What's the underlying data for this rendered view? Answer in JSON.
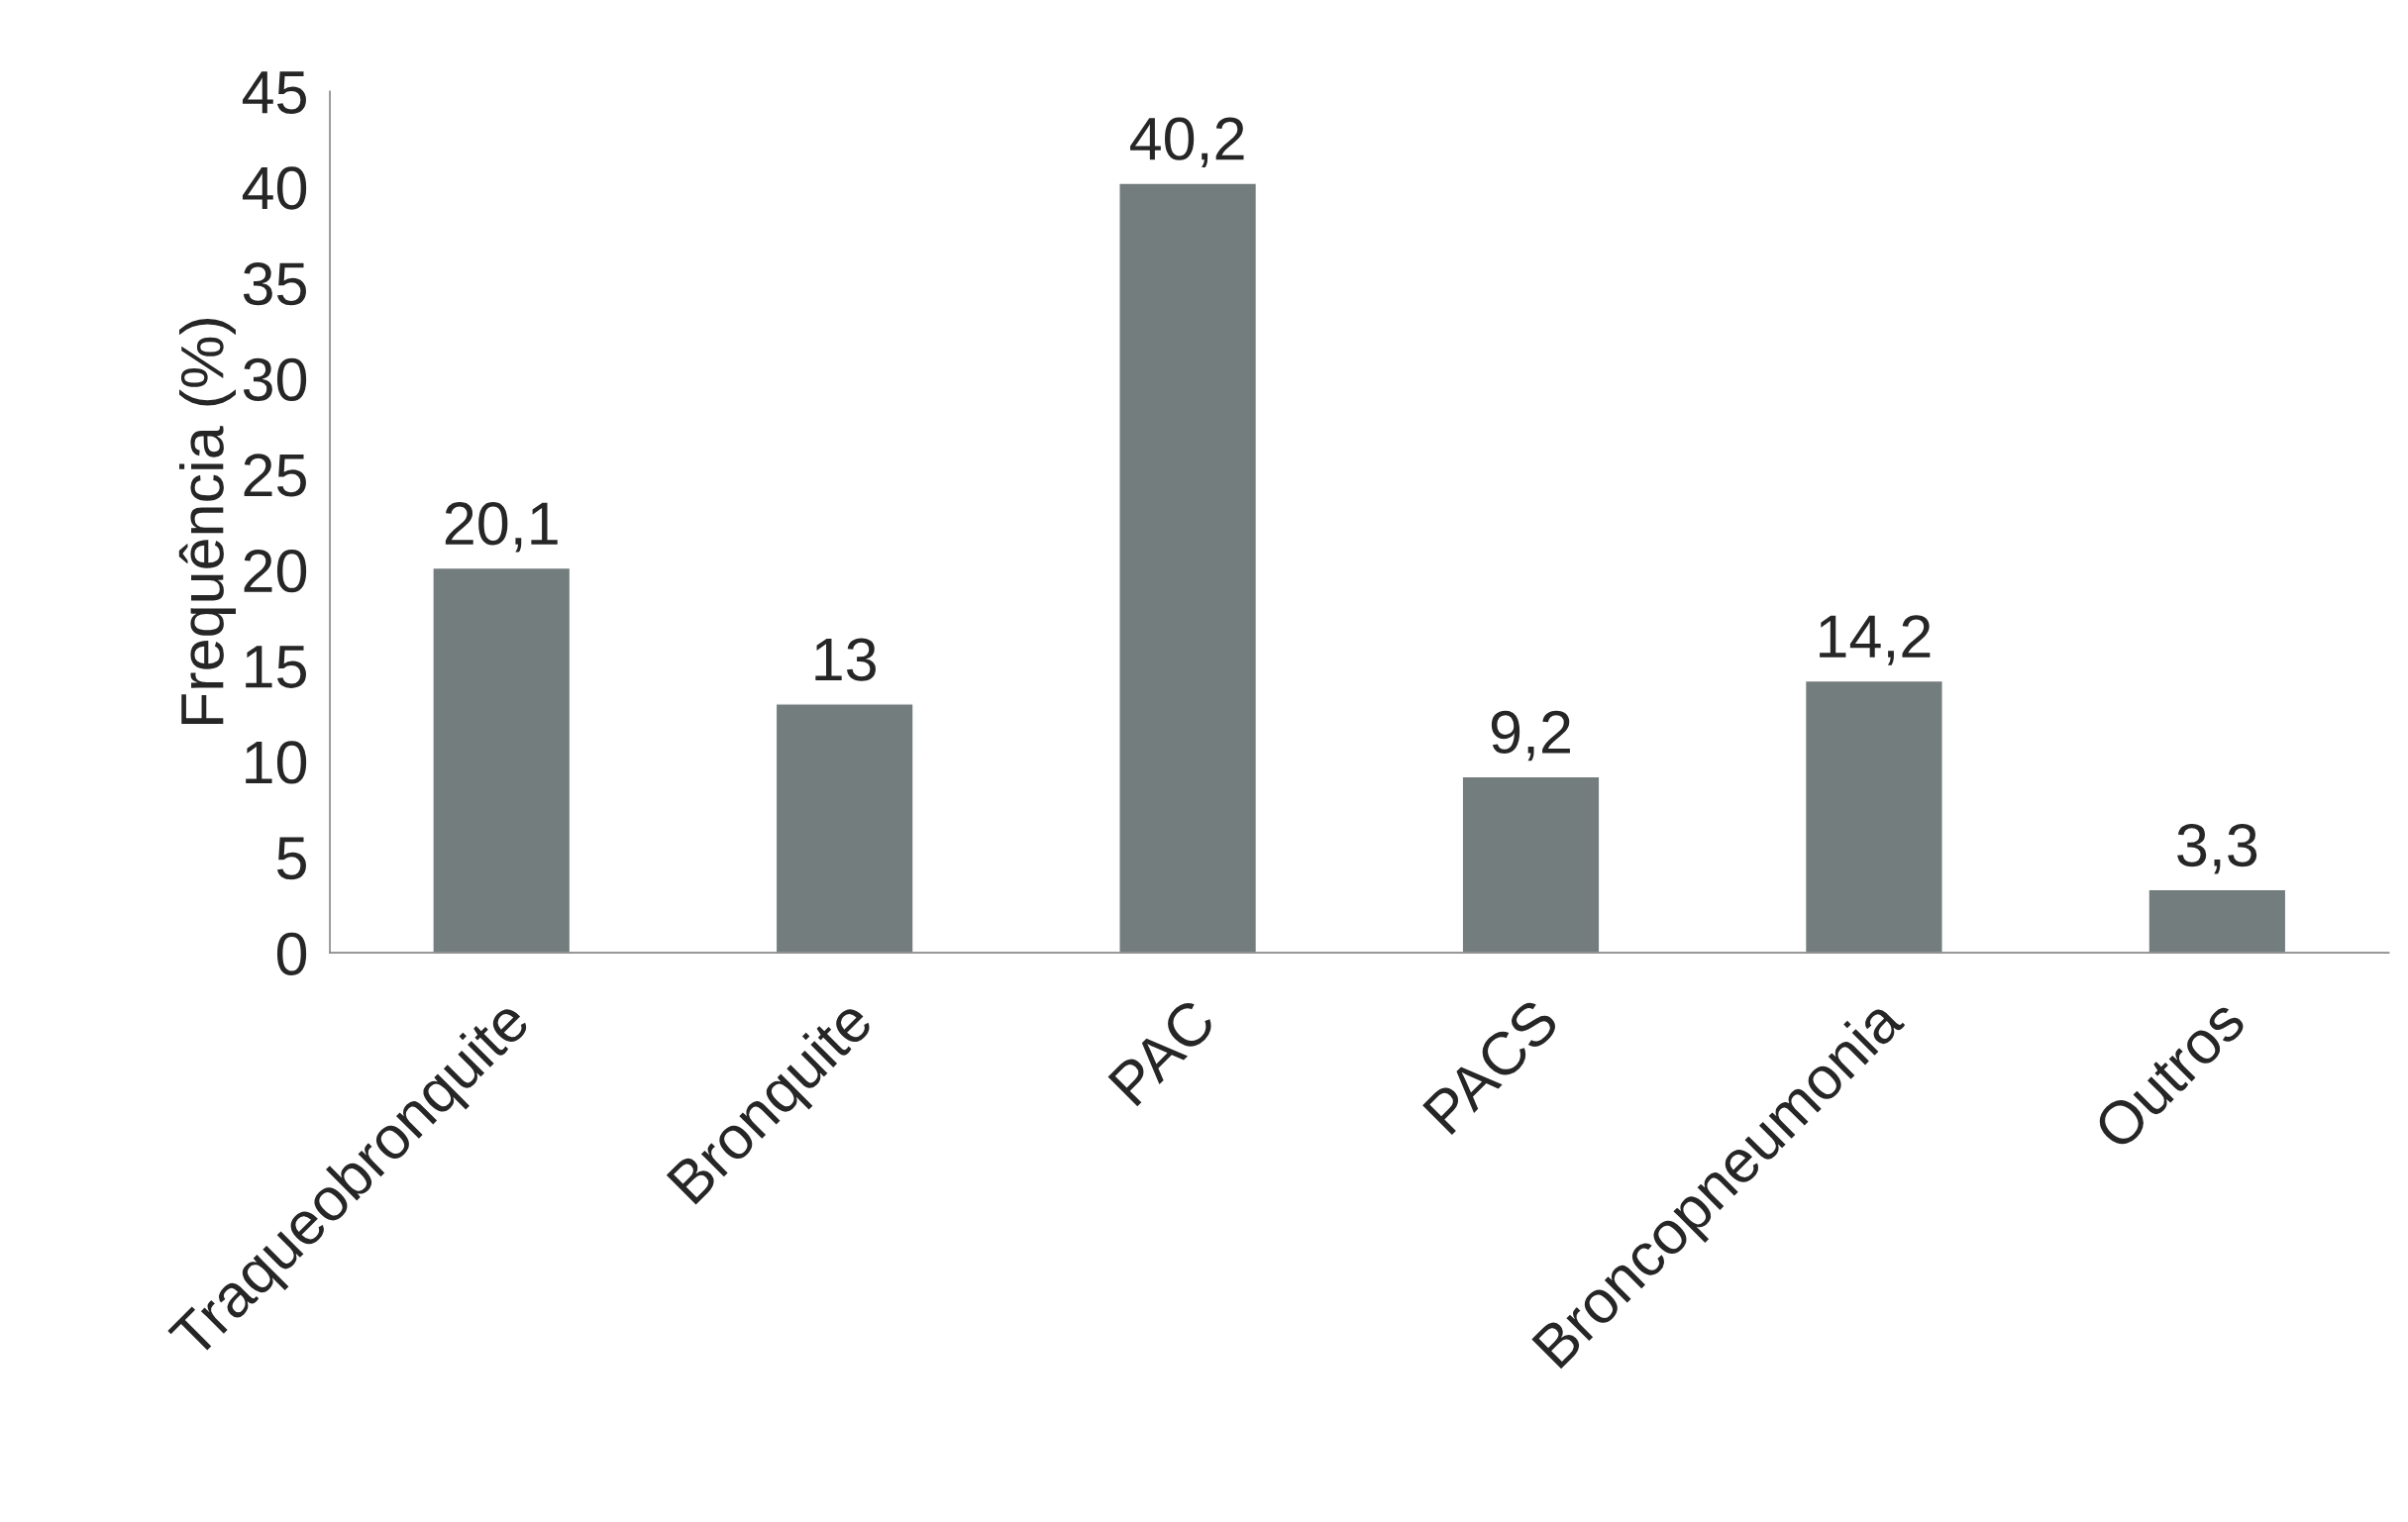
{
  "chart_data": {
    "type": "bar",
    "ylabel": "Frequência (%)",
    "categories": [
      "Traqueobronquite",
      "Bronquite",
      "PAC",
      "PACS",
      "Broncopneumonia",
      "Outros"
    ],
    "values": [
      20.1,
      13,
      40.2,
      9.2,
      14.2,
      3.3
    ],
    "value_labels": [
      "20,1",
      "13",
      "40,2",
      "9,2",
      "14,2",
      "3,3"
    ],
    "color": "#747d7d",
    "ylim": [
      0,
      45
    ],
    "yticks": [
      0,
      5,
      10,
      15,
      20,
      25,
      30,
      35,
      40,
      45
    ],
    "grid": false
  }
}
